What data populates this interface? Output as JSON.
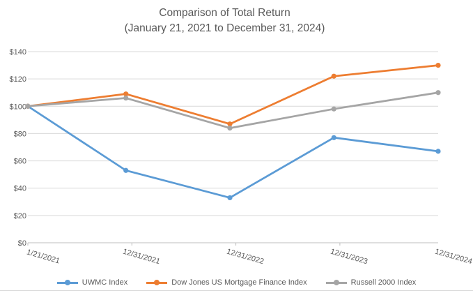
{
  "chart_data": {
    "type": "line",
    "title": "Comparison of Total Return",
    "subtitle": "(January 21, 2021 to December 31, 2024)",
    "x": [
      "1/21/2021",
      "12/31/2021",
      "12/31/2022",
      "12/31/2023",
      "12/31/2024"
    ],
    "x_day_offsets": [
      0,
      344,
      709,
      1074,
      1440
    ],
    "axis_tick_days": [
      0,
      365,
      730,
      1095
    ],
    "series": [
      {
        "name": "UWMC Index",
        "color": "#5B9BD5",
        "values": [
          100,
          53,
          33,
          77,
          67
        ]
      },
      {
        "name": "Dow Jones US Mortgage Finance Index",
        "color": "#ED7D31",
        "values": [
          100,
          109,
          87,
          122,
          130
        ]
      },
      {
        "name": "Russell 2000 Index",
        "color": "#A5A5A5",
        "values": [
          100,
          106,
          84,
          98,
          110
        ]
      }
    ],
    "ylim": [
      0,
      140
    ],
    "y_tick_step": 20,
    "y_tick_labels": [
      "$0",
      "$20",
      "$40",
      "$60",
      "$80",
      "$100",
      "$120",
      "$140"
    ],
    "grid": true,
    "legend_position": "bottom"
  },
  "colors": {
    "text": "#595959",
    "gridline": "#D9D9D9",
    "axis": "#BFBFBF",
    "bottom_rule": "#DBDBDB",
    "background": "#FFFFFF"
  }
}
